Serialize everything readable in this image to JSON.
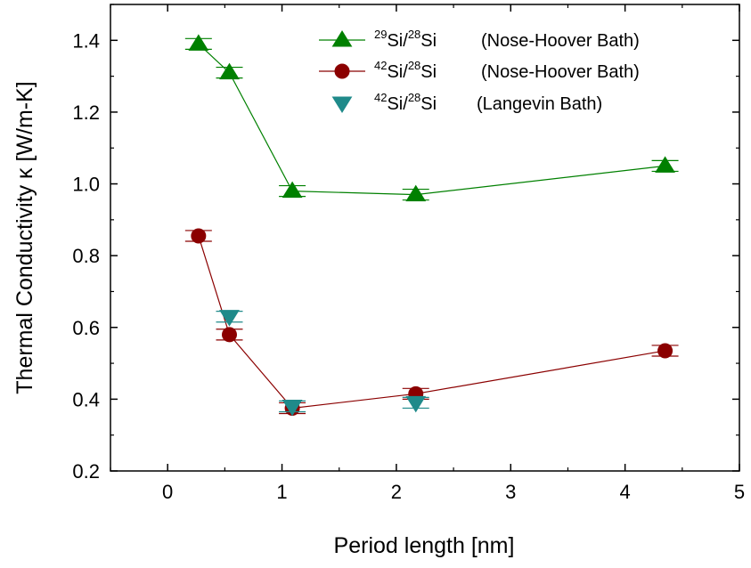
{
  "chart_data": {
    "type": "line",
    "xlabel": "Period length [nm]",
    "ylabel": "Thermal Conductivity κ [W/m-K]",
    "xlim": [
      -0.5,
      5
    ],
    "ylim": [
      0.2,
      1.5
    ],
    "xticks": [
      0,
      1,
      2,
      3,
      4,
      5
    ],
    "yticks": [
      0.2,
      0.4,
      0.6,
      0.8,
      1.0,
      1.2,
      1.4
    ],
    "xtick_labels": [
      "0",
      "1",
      "2",
      "3",
      "4",
      "5"
    ],
    "ytick_labels": [
      "0.2",
      "0.4",
      "0.6",
      "0.8",
      "1.0",
      "1.2",
      "1.4"
    ],
    "grid": false,
    "legend_position": "top-right",
    "series": [
      {
        "name": "29Si/28Si (Nose-Hoover Bath)",
        "legend": {
          "sup1": "29",
          "base1": "Si/",
          "sup2": "28",
          "base2": "Si",
          "bath": "(Nose-Hoover Bath)"
        },
        "marker": "triangle-up",
        "color": "#008000",
        "line": true,
        "x": [
          0.27,
          0.54,
          1.09,
          2.17,
          4.35
        ],
        "y": [
          1.39,
          1.31,
          0.98,
          0.97,
          1.05
        ],
        "yerr": [
          0.015,
          0.015,
          0.015,
          0.015,
          0.015
        ]
      },
      {
        "name": "42Si/28Si (Nose-Hoover Bath)",
        "legend": {
          "sup1": "42",
          "base1": "Si/",
          "sup2": "28",
          "base2": "Si",
          "bath": "(Nose-Hoover Bath)"
        },
        "marker": "circle",
        "color": "#8b0000",
        "line": true,
        "x": [
          0.27,
          0.54,
          1.09,
          2.17,
          4.35
        ],
        "y": [
          0.855,
          0.58,
          0.375,
          0.415,
          0.535
        ],
        "yerr": [
          0.015,
          0.015,
          0.015,
          0.015,
          0.015
        ]
      },
      {
        "name": "42Si/28Si (Langevin Bath)",
        "legend": {
          "sup1": "42",
          "base1": "Si/",
          "sup2": "28",
          "base2": "Si",
          "bath": "(Langevin Bath)"
        },
        "marker": "triangle-down",
        "color": "#1f8a8a",
        "line": false,
        "x": [
          0.54,
          1.09,
          2.17
        ],
        "y": [
          0.63,
          0.38,
          0.39
        ],
        "yerr": [
          0.015,
          0.015,
          0.015
        ]
      }
    ]
  }
}
